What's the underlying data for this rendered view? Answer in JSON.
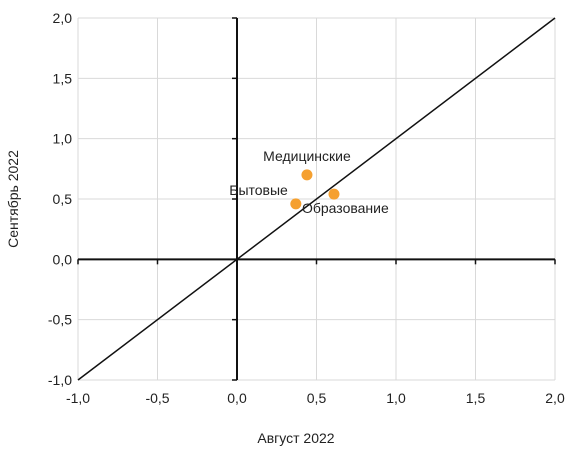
{
  "chart_data": {
    "type": "scatter",
    "xlabel": "Август 2022",
    "ylabel": "Сентябрь 2022",
    "xlim": [
      -1.0,
      2.0
    ],
    "ylim": [
      -1.0,
      2.0
    ],
    "x_ticks": [
      "-1,0",
      "-0,5",
      "0,0",
      "0,5",
      "1,0",
      "1,5",
      "2,0"
    ],
    "y_ticks": [
      "-1,0",
      "-0,5",
      "0,0",
      "0,5",
      "1,0",
      "1,5",
      "2,0"
    ],
    "grid": true,
    "diagonal_line": true,
    "points": [
      {
        "label": "Медицинские",
        "x": 0.44,
        "y": 0.7
      },
      {
        "label": "Бытовые",
        "x": 0.37,
        "y": 0.46
      },
      {
        "label": "Образование",
        "x": 0.61,
        "y": 0.54
      }
    ],
    "point_color": "#F5A030",
    "axis_color": "#111111",
    "grid_color": "#D9D9D9"
  }
}
